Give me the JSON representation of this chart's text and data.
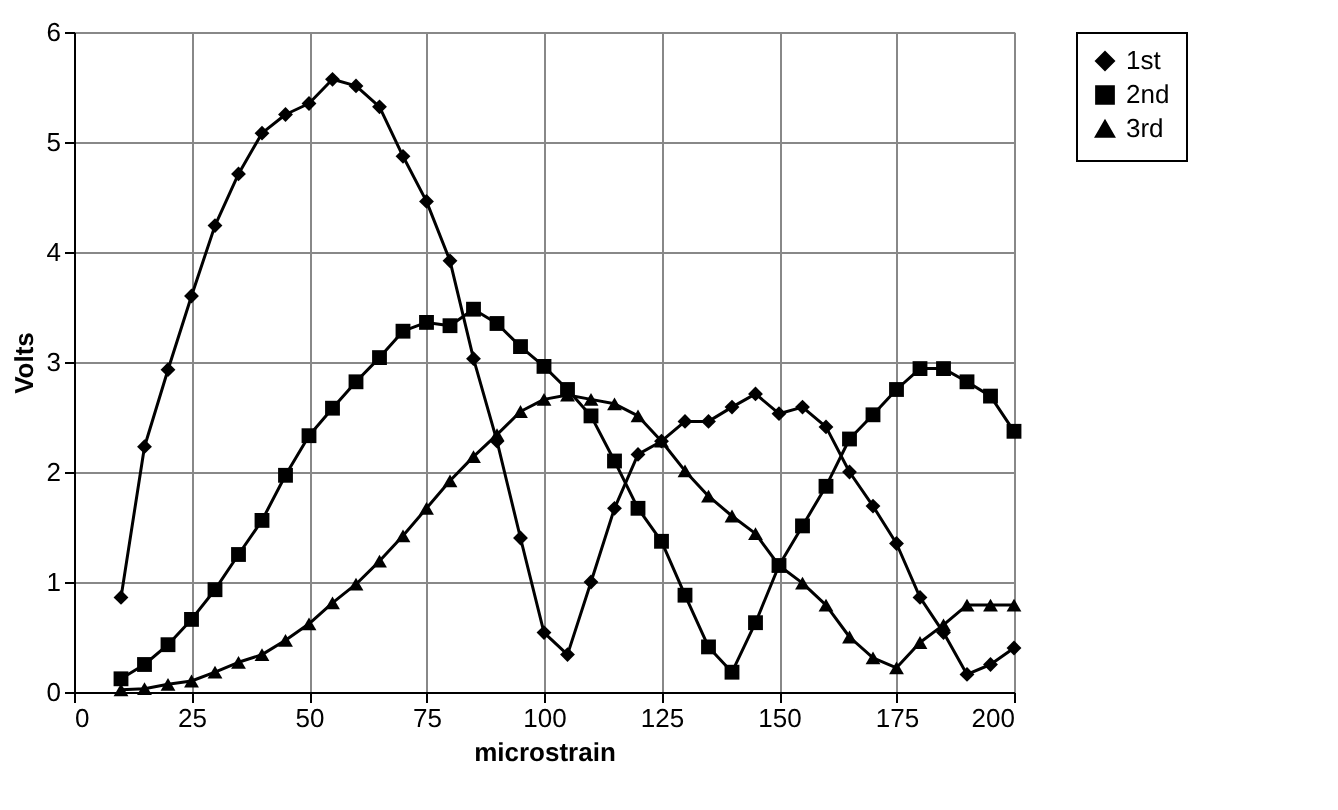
{
  "chart_data": {
    "type": "line",
    "xlabel": "microstrain",
    "ylabel": "Volts",
    "x": [
      10,
      15,
      20,
      25,
      30,
      35,
      40,
      45,
      50,
      55,
      60,
      65,
      70,
      75,
      80,
      85,
      90,
      95,
      100,
      105,
      110,
      115,
      120,
      125,
      130,
      135,
      140,
      145,
      150,
      155,
      160,
      165,
      170,
      175,
      180,
      185,
      190,
      195,
      200
    ],
    "series": [
      {
        "name": "1st",
        "color": "#000000",
        "marker": "diamond",
        "values": [
          0.86,
          2.23,
          2.93,
          3.6,
          4.24,
          4.71,
          5.08,
          5.25,
          5.35,
          5.57,
          5.51,
          5.32,
          4.87,
          4.46,
          3.92,
          3.03,
          2.28,
          1.4,
          0.54,
          0.34,
          1.0,
          1.67,
          2.16,
          2.28,
          2.46,
          2.46,
          2.59,
          2.71,
          2.53,
          2.59,
          2.41,
          2.0,
          1.69,
          1.35,
          0.86,
          0.54,
          0.16,
          0.25,
          0.4
        ]
      },
      {
        "name": "2nd",
        "color": "#000000",
        "marker": "square",
        "values": [
          0.12,
          0.25,
          0.43,
          0.66,
          0.93,
          1.25,
          1.56,
          1.97,
          2.33,
          2.58,
          2.82,
          3.04,
          3.28,
          3.36,
          3.33,
          3.48,
          3.35,
          3.14,
          2.96,
          2.75,
          2.51,
          2.1,
          1.67,
          1.37,
          0.88,
          0.41,
          0.18,
          0.63,
          1.15,
          1.51,
          1.87,
          2.3,
          2.52,
          2.75,
          2.94,
          2.94,
          2.82,
          2.69,
          2.37
        ]
      },
      {
        "name": "3rd",
        "color": "#000000",
        "marker": "triangle",
        "values": [
          0.02,
          0.03,
          0.07,
          0.1,
          0.18,
          0.27,
          0.34,
          0.47,
          0.62,
          0.81,
          0.98,
          1.19,
          1.42,
          1.67,
          1.92,
          2.14,
          2.34,
          2.55,
          2.66,
          2.7,
          2.66,
          2.62,
          2.51,
          2.28,
          2.01,
          1.78,
          1.6,
          1.44,
          1.15,
          0.99,
          0.79,
          0.5,
          0.31,
          0.22,
          0.45,
          0.61,
          0.79,
          0.79,
          0.79
        ]
      }
    ],
    "xlim": [
      0,
      200
    ],
    "xticks": [
      0,
      25,
      50,
      75,
      100,
      125,
      150,
      175,
      200
    ],
    "ylim": [
      0,
      6
    ],
    "yticks": [
      0,
      1,
      2,
      3,
      4,
      5,
      6
    ],
    "grid": true,
    "legend": "right",
    "line_style": "solid"
  }
}
